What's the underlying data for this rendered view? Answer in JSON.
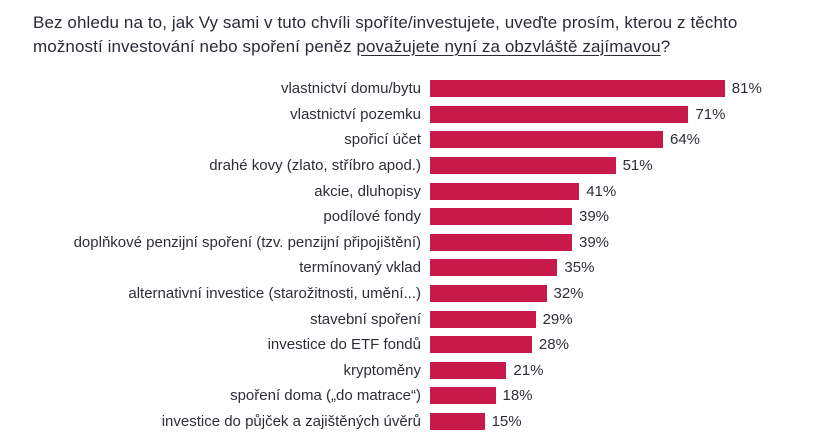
{
  "title": {
    "line1": "Bez ohledu na to, jak Vy sami v tuto chvíli spoříte/investujete, uveďte prosím, kterou z těchto",
    "line2_prefix": "možností investování nebo spoření peněz ",
    "line2_underlined": "považujete nyní za obzvláště zajímavou",
    "line2_suffix": "?"
  },
  "colors": {
    "bar": "#c8194b",
    "title_text": "#2b2b36",
    "label_text": "#2e2e38"
  },
  "chart_data": {
    "type": "bar",
    "orientation": "horizontal",
    "categories": [
      "vlastnictví domu/bytu",
      "vlastnictví pozemku",
      "spořicí účet",
      "drahé kovy (zlato, stříbro apod.)",
      "akcie, dluhopisy",
      "podílové fondy",
      "doplňkové penzijní spoření (tzv. penzijní připojištění)",
      "termínovaný vklad",
      "alternativní investice (starožitnosti, umění...)",
      "stavební spoření",
      "investice do ETF fondů",
      "kryptoměny",
      "spoření doma („do matrace“)",
      "investice do půjček a zajištěných úvěrů"
    ],
    "values": [
      81,
      71,
      64,
      51,
      41,
      39,
      39,
      35,
      32,
      29,
      28,
      21,
      18,
      15
    ],
    "value_labels": [
      "81%",
      "71%",
      "64%",
      "51%",
      "41%",
      "39%",
      "39%",
      "35%",
      "32%",
      "29%",
      "28%",
      "21%",
      "18%",
      "15%"
    ],
    "unit": "%",
    "value_axis": {
      "min": 0,
      "max": 100,
      "visible": false
    },
    "grid": false,
    "legend": false,
    "bar_label_position": "outside-end"
  }
}
